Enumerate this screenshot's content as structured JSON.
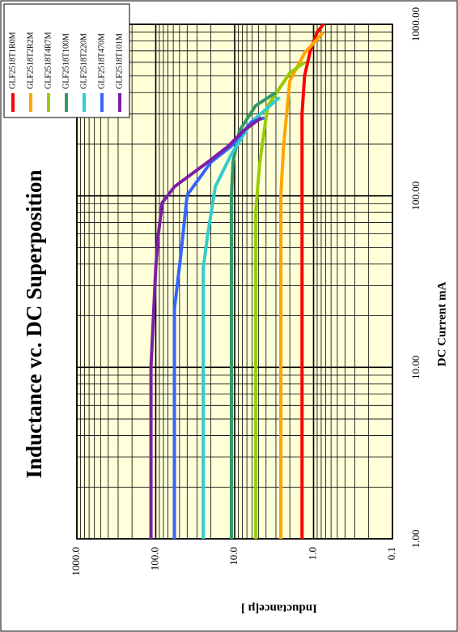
{
  "chart_data": {
    "type": "line",
    "title": "Inductance vc. DC Superposition",
    "x_label": "DC Current  mA",
    "y_label": "Inductance[μ ]",
    "log_x": true,
    "log_y": true,
    "grid": true,
    "legend": "top-right",
    "xlim": [
      1,
      1000
    ],
    "ylim": [
      0.1,
      1000
    ],
    "xticks": [
      {
        "value": 1,
        "label": "1.00"
      },
      {
        "value": 10,
        "label": "10.00"
      },
      {
        "value": 100,
        "label": "100.00"
      },
      {
        "value": 1000,
        "label": "1000.00"
      }
    ],
    "yticks": [
      0.1,
      {
        "value": 1,
        "label": "1.0"
      },
      {
        "value": 10,
        "label": "10.0"
      },
      {
        "value": 100,
        "label": "100.0"
      },
      {
        "value": 1000,
        "label": "1000.0"
      }
    ],
    "series": [
      {
        "name": "GLF2518T1R0M",
        "color": "#ff0000",
        "x": [
          1,
          10,
          100,
          300,
          500,
          700,
          900,
          1000
        ],
        "values": [
          1.4,
          1.4,
          1.4,
          1.4,
          1.3,
          1.1,
          0.9,
          0.75
        ]
      },
      {
        "name": "GLF2518T2R2M",
        "color": "#ffa500",
        "x": [
          1,
          10,
          100,
          195,
          468,
          680,
          900
        ],
        "values": [
          2.6,
          2.6,
          2.6,
          2.4,
          2.0,
          1.3,
          0.75
        ]
      },
      {
        "name": "GLF2518T4R7M",
        "color": "#99cc00",
        "x": [
          1,
          10,
          82,
          157,
          336,
          520,
          600
        ],
        "values": [
          5.4,
          5.4,
          5.4,
          4.8,
          3.8,
          2.0,
          1.3
        ]
      },
      {
        "name": "GLF2518T100M",
        "color": "#339966",
        "x": [
          1,
          10,
          100,
          157,
          240,
          336,
          400
        ],
        "values": [
          11,
          11,
          11,
          10.5,
          8.7,
          5.4,
          3.0
        ]
      },
      {
        "name": "GLF2518T220M",
        "color": "#33cccc",
        "x": [
          1,
          10,
          38,
          59,
          113,
          175,
          270,
          375
        ],
        "values": [
          25,
          25,
          25,
          22,
          17.6,
          11,
          6.1,
          2.7
        ]
      },
      {
        "name": "GLF2518T470M",
        "color": "#3366ff",
        "x": [
          1,
          10,
          22,
          42,
          101,
          157,
          195,
          270,
          285
        ],
        "values": [
          58,
          58,
          58,
          49,
          40,
          20,
          11,
          6.1,
          4.2
        ]
      },
      {
        "name": "GLF2518T101M",
        "color": "#7b1fa2",
        "x": [
          1,
          10,
          38,
          59,
          91,
          113,
          157,
          195,
          240,
          285
        ],
        "values": [
          115,
          115,
          100,
          93,
          83,
          58,
          22,
          12,
          7.7,
          4.6
        ]
      }
    ]
  }
}
